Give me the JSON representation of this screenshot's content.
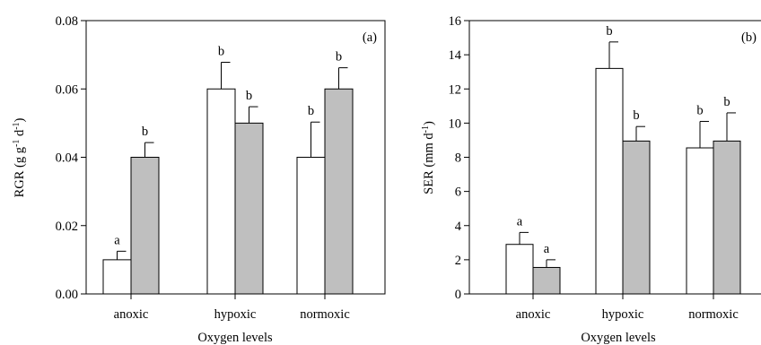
{
  "chart_data": [
    {
      "type": "bar",
      "panel_label": "(a)",
      "ylabel": "RGR (g g",
      "ylabel_unit_sup": "-1",
      "ylabel_unit_mid": " d",
      "ylabel_unit_sup2": "-1",
      "ylabel_close": ")",
      "xlabel": "Oxygen levels",
      "ylim": [
        0,
        0.08
      ],
      "yticks": [
        "0.00",
        "0.02",
        "0.04",
        "0.06",
        "0.08"
      ],
      "ytick_values": [
        0,
        0.02,
        0.04,
        0.06,
        0.08
      ],
      "categories": [
        "anoxic",
        "hypoxic",
        "normoxic"
      ],
      "series": [
        {
          "color": "#ffffff",
          "values": [
            0.01,
            0.06,
            0.04
          ],
          "errors": [
            0.0025,
            0.0078,
            0.0103
          ],
          "letters": [
            "a",
            "b",
            "b"
          ]
        },
        {
          "color": "#bfbfbf",
          "values": [
            0.04,
            0.05,
            0.06
          ],
          "errors": [
            0.0043,
            0.0048,
            0.0062
          ],
          "letters": [
            "b",
            "b",
            "b"
          ]
        }
      ],
      "legend": "none",
      "grid": false
    },
    {
      "type": "bar",
      "panel_label": "(b)",
      "ylabel": "SER (mm d",
      "ylabel_unit_sup": "-1",
      "ylabel_close": ")",
      "xlabel": "Oxygen levels",
      "ylim": [
        0,
        16
      ],
      "yticks": [
        "0",
        "2",
        "4",
        "6",
        "8",
        "10",
        "12",
        "14",
        "16"
      ],
      "ytick_values": [
        0,
        2,
        4,
        6,
        8,
        10,
        12,
        14,
        16
      ],
      "categories": [
        "anoxic",
        "hypoxic",
        "normoxic"
      ],
      "series": [
        {
          "color": "#ffffff",
          "values": [
            2.9,
            13.2,
            8.55
          ],
          "errors": [
            0.7,
            1.55,
            1.55
          ],
          "letters": [
            "a",
            "b",
            "b"
          ]
        },
        {
          "color": "#bfbfbf",
          "values": [
            1.55,
            8.95,
            8.95
          ],
          "errors": [
            0.45,
            0.85,
            1.65
          ],
          "letters": [
            "a",
            "b",
            "b"
          ]
        }
      ],
      "legend": "none",
      "grid": false
    }
  ]
}
